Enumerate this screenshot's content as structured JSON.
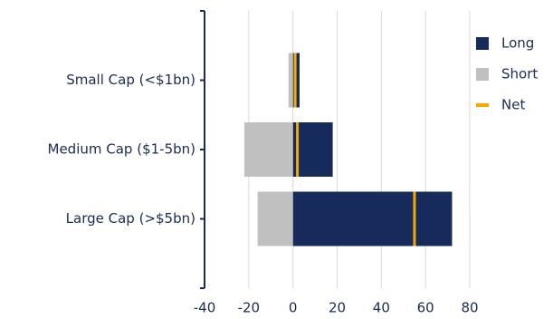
{
  "chart_data": {
    "type": "hbar",
    "categories": [
      "Small Cap (<$1bn)",
      "Medium Cap ($1-5bn)",
      "Large Cap (>$5bn)"
    ],
    "series": [
      {
        "name": "Long",
        "color": "#172a5c",
        "values": [
          3,
          18,
          72
        ]
      },
      {
        "name": "Short",
        "color": "#c0c0c0",
        "values": [
          -2,
          -22,
          -16
        ]
      },
      {
        "name": "Net",
        "color": "#f5a800",
        "values": [
          1,
          2,
          55
        ]
      }
    ],
    "xlim": [
      -40,
      80
    ],
    "xticks": [
      -40,
      -20,
      0,
      20,
      40,
      60,
      80
    ],
    "grid": true,
    "legend": "top-right"
  }
}
